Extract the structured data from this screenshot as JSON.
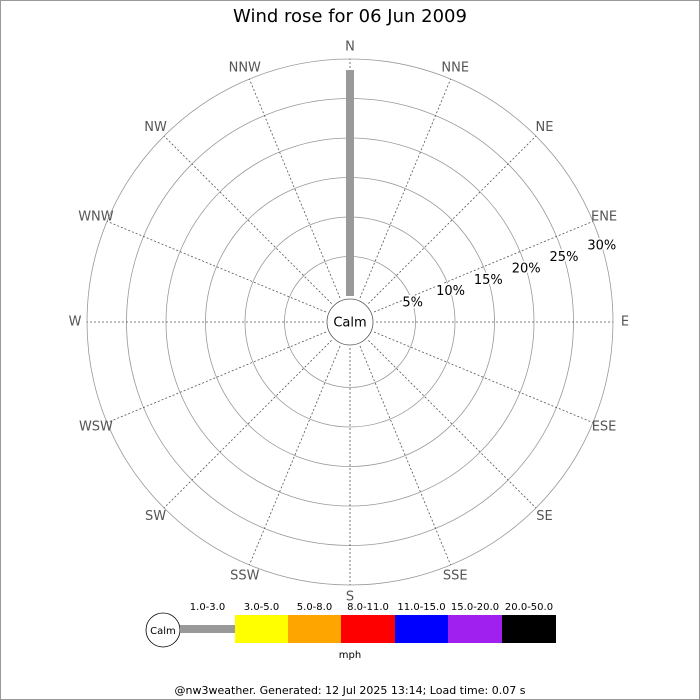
{
  "chart_data": {
    "type": "windrose",
    "title": "Wind rose for 06 Jun 2009",
    "categories": [
      "N",
      "NNE",
      "NE",
      "ENE",
      "E",
      "ESE",
      "SE",
      "SSE",
      "S",
      "SSW",
      "SW",
      "WSW",
      "W",
      "WNW",
      "NW",
      "NNW"
    ],
    "calm_label": "Calm",
    "unit": "mph",
    "footer": "@nw3weather. Generated: 12 Jul 2025 13:14; Load time: 0.07 s",
    "rlim": [
      0,
      30
    ],
    "rticks": [
      {
        "value": 5,
        "label": "5%"
      },
      {
        "value": 10,
        "label": "10%"
      },
      {
        "value": 15,
        "label": "15%"
      },
      {
        "value": 20,
        "label": "20%"
      },
      {
        "value": 25,
        "label": "25%"
      },
      {
        "value": 30,
        "label": "30%"
      }
    ],
    "series": [
      {
        "name": "1.0-3.0",
        "color": "#999999",
        "values": [
          28.6,
          0,
          0,
          0,
          0,
          0,
          0,
          0,
          0,
          0,
          0,
          0,
          0,
          0,
          0,
          0
        ]
      },
      {
        "name": "3.0-5.0",
        "color": "#ffff00",
        "values": [
          0,
          0,
          0,
          0,
          0,
          0,
          0,
          0,
          0,
          0,
          0,
          0,
          0,
          0,
          0,
          0
        ]
      },
      {
        "name": "5.0-8.0",
        "color": "#ffa500",
        "values": [
          0,
          0,
          0,
          0,
          0,
          0,
          0,
          0,
          0,
          0,
          0,
          0,
          0,
          0,
          0,
          0
        ]
      },
      {
        "name": "8.0-11.0",
        "color": "#ff0000",
        "values": [
          0,
          0,
          0,
          0,
          0,
          0,
          0,
          0,
          0,
          0,
          0,
          0,
          0,
          0,
          0,
          0
        ]
      },
      {
        "name": "11.0-15.0",
        "color": "#0000ff",
        "values": [
          0,
          0,
          0,
          0,
          0,
          0,
          0,
          0,
          0,
          0,
          0,
          0,
          0,
          0,
          0,
          0
        ]
      },
      {
        "name": "15.0-20.0",
        "color": "#a020f0",
        "values": [
          0,
          0,
          0,
          0,
          0,
          0,
          0,
          0,
          0,
          0,
          0,
          0,
          0,
          0,
          0,
          0
        ]
      },
      {
        "name": "20.0-50.0",
        "color": "#000000",
        "values": [
          0,
          0,
          0,
          0,
          0,
          0,
          0,
          0,
          0,
          0,
          0,
          0,
          0,
          0,
          0,
          0
        ]
      }
    ]
  }
}
